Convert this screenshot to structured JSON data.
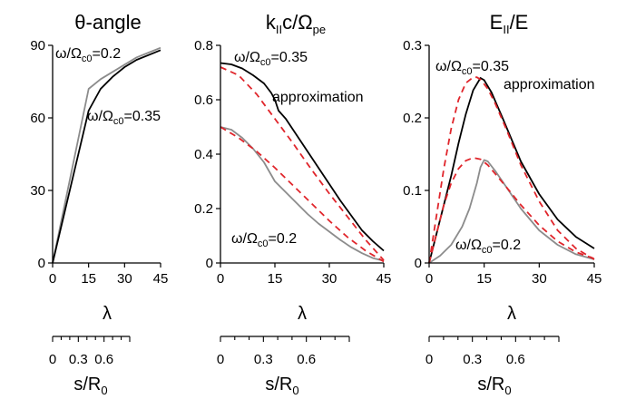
{
  "colors": {
    "black": "#000000",
    "gray": "#8c8c8c",
    "red": "#e0252b",
    "axis": "#000000"
  },
  "chart_data": [
    {
      "type": "line",
      "title": "θ-angle",
      "xlabel": "λ",
      "ylabel": "",
      "xlim": [
        0,
        45
      ],
      "ylim": [
        0,
        90
      ],
      "xticks": [
        0,
        15,
        30,
        45
      ],
      "yticks": [
        0,
        30,
        60,
        90
      ],
      "secondary_axis": {
        "label": "s/R0",
        "ticks": [
          0,
          0.3,
          0.6
        ],
        "lim": [
          0,
          0.9
        ]
      },
      "annotations": [
        {
          "text_prefix": "ω/Ω",
          "text_sub": "c0",
          "text_suffix": "=0.2",
          "color": "gray"
        },
        {
          "text_prefix": "ω/Ω",
          "text_sub": "c0",
          "text_suffix": "=0.35",
          "color": "black"
        }
      ],
      "series": [
        {
          "color": "gray",
          "style": "solid",
          "x": [
            0,
            15,
            20,
            25,
            30,
            35,
            40,
            45
          ],
          "y": [
            0,
            72,
            76,
            79,
            82,
            85,
            87,
            89
          ]
        },
        {
          "color": "black",
          "style": "solid",
          "x": [
            0,
            15,
            20,
            25,
            30,
            35,
            40,
            45
          ],
          "y": [
            0,
            63,
            72,
            77,
            81,
            84,
            86,
            88
          ]
        }
      ]
    },
    {
      "type": "line",
      "title_main": "k",
      "title_sub1": "II",
      "title_mid": "c/Ω",
      "title_sub2": "pe",
      "xlabel": "λ",
      "ylabel": "",
      "xlim": [
        0,
        45
      ],
      "ylim": [
        0,
        0.8
      ],
      "xticks": [
        0,
        15,
        30,
        45
      ],
      "yticks": [
        0,
        0.2,
        0.4,
        0.6,
        0.8
      ],
      "secondary_axis": {
        "label": "s/R0",
        "ticks": [
          0,
          0.3,
          0.6
        ],
        "lim": [
          0,
          0.9
        ]
      },
      "annotations": [
        {
          "text_prefix": "ω/Ω",
          "text_sub": "c0",
          "text_suffix": "=0.35",
          "color": "black"
        },
        {
          "text": "approximation",
          "color": "red"
        },
        {
          "text_prefix": "ω/Ω",
          "text_sub": "c0",
          "text_suffix": "=0.2",
          "color": "gray"
        }
      ],
      "series": [
        {
          "color": "black",
          "style": "solid",
          "x": [
            0,
            3,
            6,
            9,
            12,
            14,
            15,
            16,
            18,
            21,
            24,
            27,
            30,
            33,
            36,
            39,
            42,
            45
          ],
          "y": [
            0.735,
            0.73,
            0.715,
            0.69,
            0.66,
            0.625,
            0.6,
            0.56,
            0.53,
            0.47,
            0.41,
            0.35,
            0.29,
            0.23,
            0.175,
            0.12,
            0.08,
            0.045
          ]
        },
        {
          "color": "gray",
          "style": "solid",
          "x": [
            0,
            3,
            6,
            9,
            12,
            15,
            18,
            21,
            24,
            27,
            30,
            33,
            36,
            39,
            42,
            45
          ],
          "y": [
            0.5,
            0.49,
            0.46,
            0.42,
            0.37,
            0.3,
            0.26,
            0.22,
            0.18,
            0.145,
            0.115,
            0.085,
            0.058,
            0.036,
            0.018,
            0.008
          ]
        },
        {
          "color": "red",
          "style": "dashed",
          "x": [
            0,
            5,
            10,
            15,
            20,
            25,
            30,
            35,
            40,
            45
          ],
          "y": [
            0.72,
            0.69,
            0.62,
            0.53,
            0.44,
            0.345,
            0.255,
            0.17,
            0.085,
            0.01
          ]
        },
        {
          "color": "red",
          "style": "dashed",
          "x": [
            0,
            5,
            10,
            15,
            20,
            25,
            30,
            35,
            40,
            45
          ],
          "y": [
            0.5,
            0.46,
            0.41,
            0.35,
            0.285,
            0.22,
            0.155,
            0.095,
            0.045,
            0.005
          ]
        }
      ]
    },
    {
      "type": "line",
      "title_main": "E",
      "title_sub1": "II",
      "title_suffix": "/E",
      "xlabel": "λ",
      "ylabel": "",
      "xlim": [
        0,
        45
      ],
      "ylim": [
        0,
        0.3
      ],
      "xticks": [
        0,
        15,
        30,
        45
      ],
      "yticks": [
        0,
        0.1,
        0.2,
        0.3
      ],
      "secondary_axis": {
        "label": "s/R0",
        "ticks": [
          0,
          0.3,
          0.6
        ],
        "lim": [
          0,
          0.9
        ]
      },
      "annotations": [
        {
          "text_prefix": "ω/Ω",
          "text_sub": "c0",
          "text_suffix": "=0.35",
          "color": "black"
        },
        {
          "text": "approximation",
          "color": "red"
        },
        {
          "text_prefix": "ω/Ω",
          "text_sub": "c0",
          "text_suffix": "=0.2",
          "color": "gray"
        }
      ],
      "series": [
        {
          "color": "black",
          "style": "solid",
          "x": [
            0,
            2,
            4,
            6,
            8,
            10,
            12,
            14,
            15,
            17,
            20,
            25,
            30,
            35,
            40,
            45
          ],
          "y": [
            0,
            0.04,
            0.08,
            0.12,
            0.165,
            0.205,
            0.238,
            0.255,
            0.252,
            0.235,
            0.2,
            0.14,
            0.095,
            0.06,
            0.036,
            0.02
          ]
        },
        {
          "color": "gray",
          "style": "solid",
          "x": [
            0,
            3,
            6,
            9,
            11,
            13,
            14,
            15,
            16,
            18,
            21,
            25,
            30,
            35,
            40,
            45
          ],
          "y": [
            0,
            0.01,
            0.025,
            0.05,
            0.075,
            0.11,
            0.132,
            0.142,
            0.14,
            0.127,
            0.105,
            0.075,
            0.045,
            0.025,
            0.012,
            0.005
          ]
        },
        {
          "color": "red",
          "style": "dashed",
          "x": [
            0,
            2,
            4,
            6,
            8,
            10,
            12,
            13,
            14,
            16,
            18,
            21,
            25,
            30,
            35,
            40,
            45
          ],
          "y": [
            0,
            0.065,
            0.13,
            0.185,
            0.225,
            0.248,
            0.256,
            0.256,
            0.253,
            0.24,
            0.22,
            0.185,
            0.135,
            0.085,
            0.045,
            0.02,
            0.005
          ]
        },
        {
          "color": "red",
          "style": "dashed",
          "x": [
            0,
            2,
            4,
            6,
            8,
            10,
            12,
            14,
            16,
            18,
            21,
            25,
            30,
            35,
            40,
            45
          ],
          "y": [
            0,
            0.04,
            0.08,
            0.11,
            0.13,
            0.141,
            0.145,
            0.143,
            0.135,
            0.123,
            0.105,
            0.08,
            0.052,
            0.03,
            0.015,
            0.006
          ]
        }
      ]
    }
  ]
}
